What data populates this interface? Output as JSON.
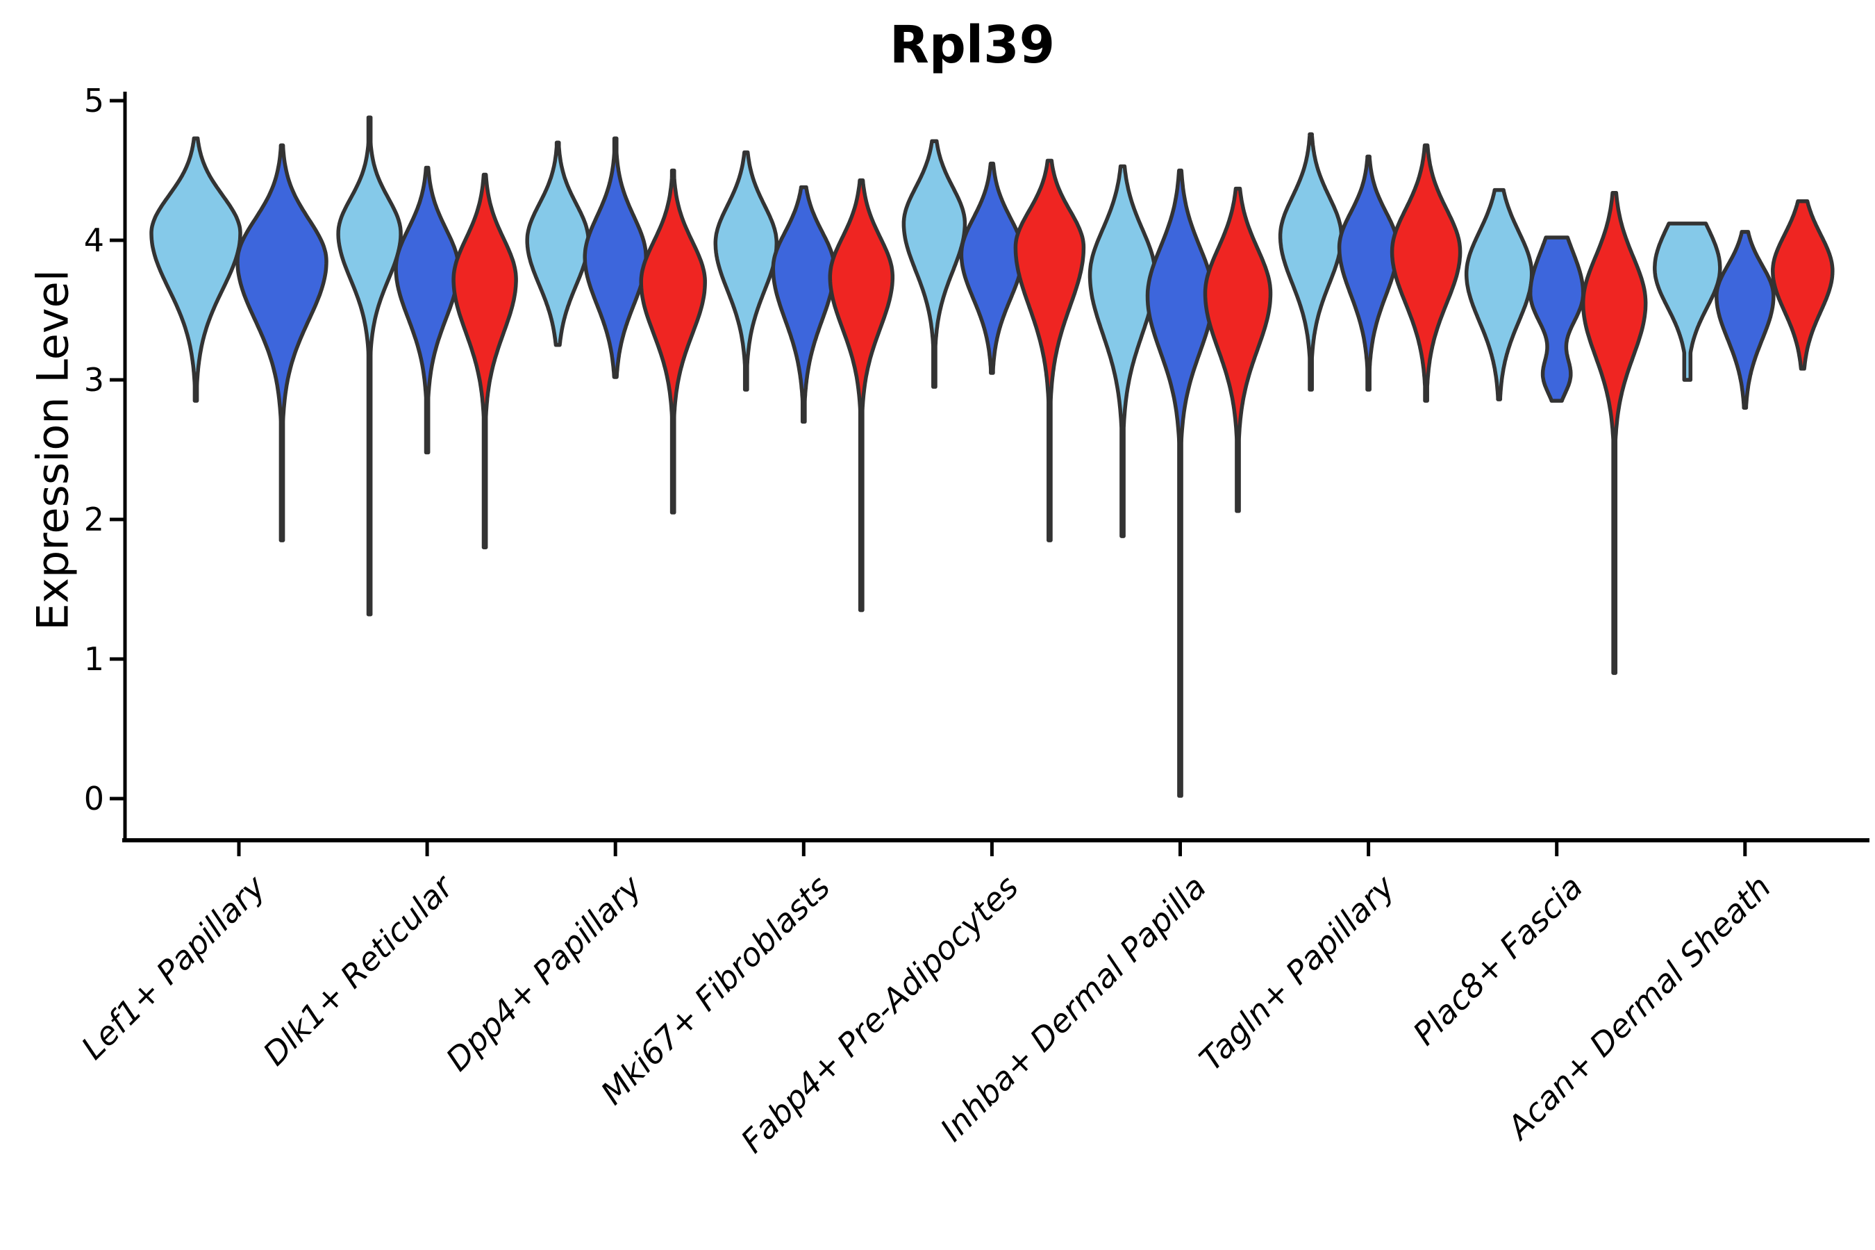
{
  "figure": {
    "title": "Rpl39",
    "y_axis_label": "Expression Level"
  },
  "chart_data": {
    "type": "violin",
    "title": "Rpl39",
    "xlabel": "",
    "ylabel": "Expression Level",
    "ylim": [
      -0.3,
      5.15
    ],
    "yticks": [
      "0",
      "1",
      "2",
      "3",
      "4",
      "5"
    ],
    "legend": "none",
    "grid": false,
    "outline_color": "#333333",
    "axis_color": "#000000",
    "series_colors": {
      "light_blue": "#85C9E9",
      "blue": "#3D66DC",
      "red": "#EF2522"
    },
    "categories": [
      "Lef1+ Papillary",
      "Dlk1+ Reticular",
      "Dpp4+ Papillary",
      "Mki67+ Fibroblasts",
      "Fabp4+ Pre-Adipocytes",
      "Inhba+ Dermal Papilla",
      "Tagln+ Papillary",
      "Plac8+ Fascia",
      "Acan+ Dermal Sheath"
    ],
    "groups": [
      {
        "category": "Lef1+ Papillary",
        "violins": [
          {
            "series": "light_blue",
            "dx": -62,
            "half_width": 64,
            "min": 2.85,
            "max": 4.73,
            "mode": 4.05,
            "su": 0.27,
            "sd": 0.4
          },
          {
            "series": "blue",
            "dx": 62,
            "half_width": 64,
            "min": 1.85,
            "max": 4.68,
            "mode": 3.85,
            "su": 0.3,
            "sd": 0.42
          }
        ]
      },
      {
        "category": "Dlk1+ Reticular",
        "violins": [
          {
            "series": "light_blue",
            "dx": -83,
            "half_width": 45,
            "min": 1.32,
            "max": 4.88,
            "mode": 4.05,
            "su": 0.25,
            "sd": 0.33
          },
          {
            "series": "blue",
            "dx": 0,
            "half_width": 45,
            "min": 2.48,
            "max": 4.52,
            "mode": 3.8,
            "su": 0.28,
            "sd": 0.36
          },
          {
            "series": "red",
            "dx": 83,
            "half_width": 45,
            "min": 1.8,
            "max": 4.47,
            "mode": 3.72,
            "su": 0.29,
            "sd": 0.38
          }
        ]
      },
      {
        "category": "Dpp4+ Papillary",
        "violins": [
          {
            "series": "light_blue",
            "dx": -83,
            "half_width": 44,
            "min": 3.25,
            "max": 4.7,
            "mode": 4.0,
            "su": 0.26,
            "sd": 0.32
          },
          {
            "series": "blue",
            "dx": 0,
            "half_width": 44,
            "min": 3.02,
            "max": 4.73,
            "mode": 3.88,
            "su": 0.29,
            "sd": 0.34
          },
          {
            "series": "red",
            "dx": 83,
            "half_width": 46,
            "min": 2.05,
            "max": 4.5,
            "mode": 3.7,
            "su": 0.29,
            "sd": 0.37
          }
        ]
      },
      {
        "category": "Mki67+ Fibroblasts",
        "violins": [
          {
            "series": "light_blue",
            "dx": -83,
            "half_width": 44,
            "min": 2.93,
            "max": 4.63,
            "mode": 3.98,
            "su": 0.27,
            "sd": 0.34
          },
          {
            "series": "blue",
            "dx": 0,
            "half_width": 44,
            "min": 2.7,
            "max": 4.38,
            "mode": 3.8,
            "su": 0.26,
            "sd": 0.37
          },
          {
            "series": "red",
            "dx": 83,
            "half_width": 45,
            "min": 1.35,
            "max": 4.43,
            "mode": 3.74,
            "su": 0.28,
            "sd": 0.37
          }
        ]
      },
      {
        "category": "Fabp4+ Pre-Adipocytes",
        "violins": [
          {
            "series": "light_blue",
            "dx": -83,
            "half_width": 44,
            "min": 2.95,
            "max": 4.71,
            "mode": 4.12,
            "su": 0.26,
            "sd": 0.34
          },
          {
            "series": "blue",
            "dx": 0,
            "half_width": 44,
            "min": 3.05,
            "max": 4.55,
            "mode": 3.9,
            "su": 0.26,
            "sd": 0.32
          },
          {
            "series": "red",
            "dx": 83,
            "half_width": 49,
            "min": 1.85,
            "max": 4.57,
            "mode": 3.95,
            "su": 0.26,
            "sd": 0.42
          }
        ]
      },
      {
        "category": "Inhba+ Dermal Papilla",
        "violins": [
          {
            "series": "light_blue",
            "dx": -83,
            "half_width": 47,
            "min": 1.88,
            "max": 4.53,
            "mode": 3.75,
            "su": 0.33,
            "sd": 0.42
          },
          {
            "series": "blue",
            "dx": 0,
            "half_width": 47,
            "min": 0.02,
            "max": 4.5,
            "mode": 3.6,
            "su": 0.35,
            "sd": 0.4
          },
          {
            "series": "red",
            "dx": 83,
            "half_width": 47,
            "min": 2.06,
            "max": 4.37,
            "mode": 3.62,
            "su": 0.32,
            "sd": 0.4
          }
        ]
      },
      {
        "category": "Tagln+ Papillary",
        "violins": [
          {
            "series": "light_blue",
            "dx": -83,
            "half_width": 44,
            "min": 2.93,
            "max": 4.76,
            "mode": 4.03,
            "su": 0.28,
            "sd": 0.34
          },
          {
            "series": "blue",
            "dx": 0,
            "half_width": 42,
            "min": 2.93,
            "max": 4.6,
            "mode": 3.95,
            "su": 0.25,
            "sd": 0.34
          },
          {
            "series": "red",
            "dx": 83,
            "half_width": 49,
            "min": 2.85,
            "max": 4.68,
            "mode": 3.92,
            "su": 0.3,
            "sd": 0.37
          }
        ]
      },
      {
        "category": "Plac8+ Fascia",
        "violins": [
          {
            "series": "light_blue",
            "dx": -83,
            "half_width": 47,
            "min": 2.86,
            "max": 4.36,
            "mode": 3.76,
            "su": 0.3,
            "sd": 0.34
          },
          {
            "series": "blue",
            "dx": 0,
            "half_width": 38,
            "min": 2.85,
            "max": 4.02,
            "mode": 3.62,
            "su": 0.3,
            "sd": 0.22,
            "bump": {
              "v": 3.03,
              "a": 0.5,
              "s": 0.13
            }
          },
          {
            "series": "red",
            "dx": 83,
            "half_width": 45,
            "min": 0.9,
            "max": 4.34,
            "mode": 3.55,
            "su": 0.33,
            "sd": 0.38
          }
        ]
      },
      {
        "category": "Acan+ Dermal Sheath",
        "violins": [
          {
            "series": "light_blue",
            "dx": -83,
            "half_width": 47,
            "min": 3.0,
            "max": 4.12,
            "mode": 3.8,
            "su": 0.3,
            "sd": 0.28,
            "floor": 4.5
          },
          {
            "series": "blue",
            "dx": 0,
            "half_width": 41,
            "min": 2.8,
            "max": 4.06,
            "mode": 3.6,
            "su": 0.22,
            "sd": 0.31
          },
          {
            "series": "red",
            "dx": 83,
            "half_width": 43,
            "min": 3.08,
            "max": 4.28,
            "mode": 3.78,
            "su": 0.26,
            "sd": 0.29
          }
        ]
      }
    ]
  }
}
